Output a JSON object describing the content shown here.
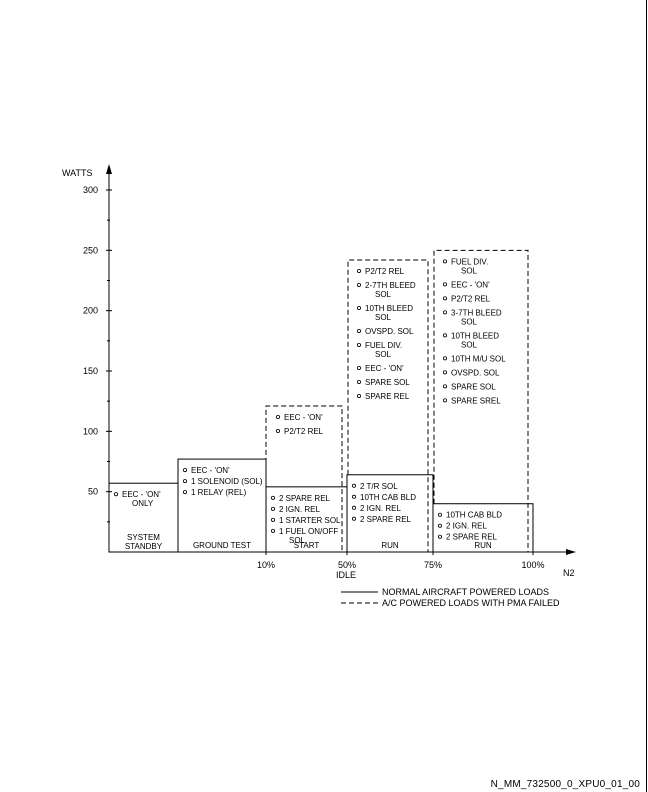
{
  "chart_data": {
    "type": "bar",
    "ylabel": "WATTS",
    "xlabel": "N2",
    "ylim": [
      0,
      300
    ],
    "yticks": [
      "300",
      "250",
      "200",
      "150",
      "100",
      "50"
    ],
    "xticks": [
      "10%",
      "50%",
      "75%",
      "100%"
    ],
    "idle_label": "IDLE",
    "legend": {
      "placement": "bottom-right",
      "normal": "NORMAL AIRCRAFT POWERED LOADS",
      "pma_failed": "A/C POWERED LOADS WITH PMA FAILED"
    },
    "series": [
      {
        "name": "NORMAL AIRCRAFT POWERED LOADS",
        "style": "solid"
      },
      {
        "name": "A/C POWERED LOADS WITH PMA FAILED",
        "style": "dashed"
      }
    ],
    "phases": [
      {
        "label": "SYSTEM\nSTANDBY",
        "normal": 57,
        "pma_failed": null,
        "loads": [
          "EEC - 'ON'\nONLY"
        ],
        "failed_loads": []
      },
      {
        "label": "GROUND TEST",
        "normal": 77,
        "pma_failed": null,
        "loads": [
          "EEC - 'ON'",
          "1 SOLENOID (SOL)",
          "1 RELAY (REL)"
        ],
        "failed_loads": []
      },
      {
        "label": "START",
        "normal": 54,
        "pma_failed": 121,
        "loads": [
          "2 SPARE REL",
          "2 IGN. REL",
          "1 STARTER SOL",
          "1 FUEL ON/OFF\nSOL"
        ],
        "failed_loads": [
          "EEC - 'ON'",
          "P2/T2 REL"
        ]
      },
      {
        "label": "RUN",
        "normal": 64,
        "pma_failed": 242,
        "loads": [
          "2 T/R SOL",
          "10TH CAB BLD",
          "2 IGN. REL",
          "2 SPARE REL"
        ],
        "failed_loads": [
          "P2/T2 REL",
          "2-7TH BLEED\nSOL",
          "10TH BLEED\nSOL",
          "OVSPD. SOL",
          "FUEL DIV.\nSOL",
          "EEC - 'ON'",
          "SPARE SOL",
          "SPARE REL"
        ]
      },
      {
        "label": "RUN",
        "normal": 40,
        "pma_failed": 250,
        "loads": [
          "10TH CAB BLD",
          "2 IGN. REL",
          "2 SPARE REL"
        ],
        "failed_loads": [
          "FUEL DIV.\nSOL",
          "EEC - 'ON'",
          "P2/T2 REL",
          "3-7TH BLEED\nSOL",
          "10TH BLEED\nSOL",
          "10TH M/U SOL",
          "OVSPD. SOL",
          "SPARE SOL",
          "SPARE SREL"
        ]
      }
    ]
  },
  "figure_id": "N_MM_732500_0_XPU0_01_00"
}
